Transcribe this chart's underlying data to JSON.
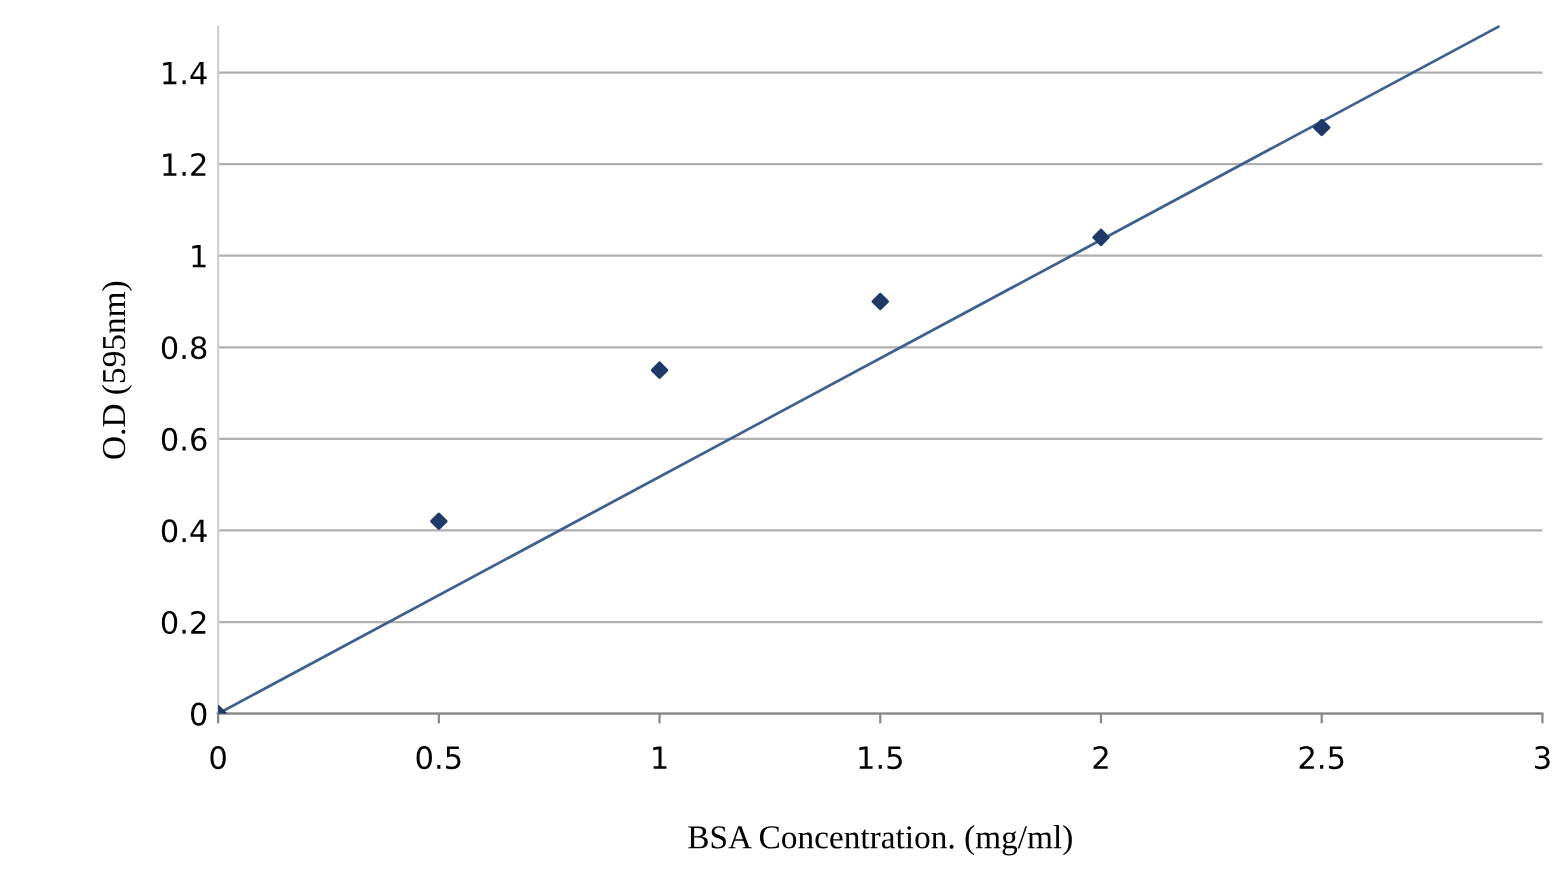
{
  "chart_data": {
    "type": "scatter",
    "xlabel": "BSA Concentration. (mg/ml)",
    "ylabel": "O.D (595nm)",
    "xlim": [
      0,
      3
    ],
    "xticks": [
      0,
      0.5,
      1,
      1.5,
      2,
      2.5,
      3
    ],
    "ylim": [
      0,
      1.5
    ],
    "yticks": [
      0,
      0.2,
      0.4,
      0.6,
      0.8,
      1,
      1.2,
      1.4
    ],
    "grid": "y",
    "marker": "diamond",
    "series": [
      {
        "color": "#1f3a68",
        "x": [
          0,
          0.5,
          1,
          1.5,
          2,
          2.5
        ],
        "values": [
          0,
          0.42,
          0.75,
          0.9,
          1.04,
          1.28
        ]
      },
      {
        "type": "line",
        "color": "#3f5f8f",
        "x": [
          0,
          2.9
        ],
        "values": [
          0,
          1.5
        ],
        "marker": "none",
        "line_style": "solid"
      }
    ]
  }
}
